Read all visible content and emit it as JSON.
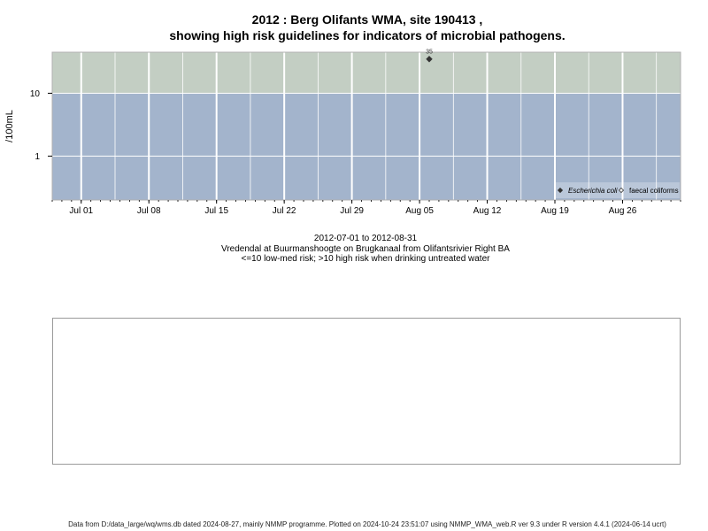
{
  "title_line1": "2012 : Berg Olifants WMA, site 190413 ,",
  "title_line2": "showing high risk guidelines for indicators of microbial pathogens.",
  "colors": {
    "high_risk_band": "#c3cec3",
    "low_risk_band": "#a3b4cc",
    "grid": "#ffffff",
    "point": "#333333"
  },
  "chart_data": {
    "type": "scatter",
    "title": "2012 : Berg Olifants WMA, site 190413 , showing high risk guidelines for indicators of microbial pathogens.",
    "xlabel": "",
    "ylabel": "/100mL",
    "y_scale": "log",
    "xlim": [
      "2012-06-28",
      "2012-09-01"
    ],
    "ylim": [
      0.2,
      45
    ],
    "x_ticks": [
      {
        "date": "2012-07-01",
        "label": "Jul 01"
      },
      {
        "date": "2012-07-08",
        "label": "Jul 08"
      },
      {
        "date": "2012-07-15",
        "label": "Jul 15"
      },
      {
        "date": "2012-07-22",
        "label": "Jul 22"
      },
      {
        "date": "2012-07-29",
        "label": "Jul 29"
      },
      {
        "date": "2012-08-05",
        "label": "Aug 05"
      },
      {
        "date": "2012-08-12",
        "label": "Aug 12"
      },
      {
        "date": "2012-08-19",
        "label": "Aug 19"
      },
      {
        "date": "2012-08-26",
        "label": "Aug 26"
      }
    ],
    "y_ticks": [
      {
        "value": 1,
        "label": "1"
      },
      {
        "value": 10,
        "label": "10"
      }
    ],
    "risk_threshold": 10,
    "grid": true,
    "legend_position": "bottom-right",
    "series": [
      {
        "name": "Escherichia coli",
        "marker": "filled-diamond",
        "points": [
          {
            "x": "2012-08-06",
            "y": 35,
            "label": "35"
          }
        ]
      },
      {
        "name": "faecal coliforms",
        "marker": "open-diamond",
        "points": []
      }
    ]
  },
  "caption": {
    "date_range": "2012-07-01 to 2012-08-31",
    "location": "Vredendal at Buurmanshoogte on Brugkanaal from Olifantsrivier Right BA",
    "risk_note": "<=10 low-med risk; >10 high risk when drinking untreated water"
  },
  "footer": "Data from D:/data_large/wq/wms.db dated 2024-08-27, mainly NMMP programme. Plotted on 2024-10-24 23:51:07 using NMMP_WMA_web.R ver 9.3 under R version 4.4.1 (2024-06-14 ucrt)"
}
